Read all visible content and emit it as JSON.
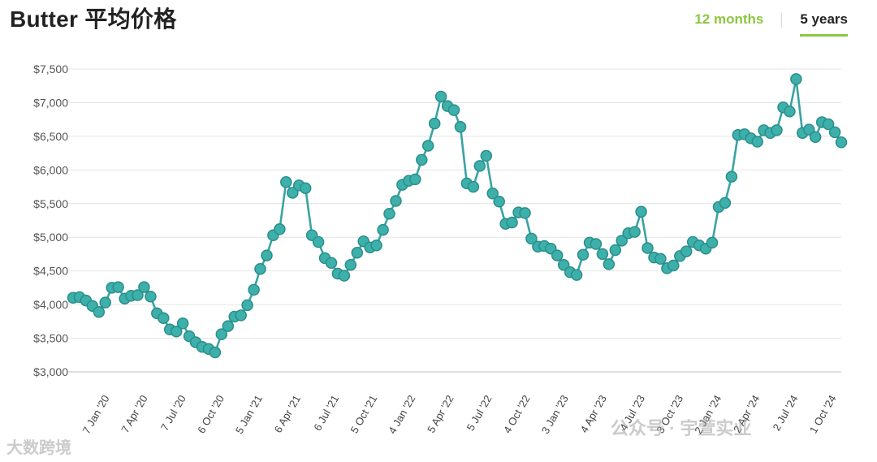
{
  "title": "Butter 平均价格",
  "tabs": [
    {
      "label": "12 months",
      "active": false
    },
    {
      "label": "5 years",
      "active": true
    }
  ],
  "colors": {
    "accent": "#8cc63f",
    "series": "#3aa3a3",
    "grid": "#e4e4e4"
  },
  "watermarks": {
    "left": "大数跨境",
    "right": "公众号 · 宇萱实业"
  },
  "chart_data": {
    "type": "line",
    "ylim": [
      3000,
      7500
    ],
    "yticks": [
      3000,
      3500,
      4000,
      4500,
      5000,
      5500,
      6000,
      6500,
      7000,
      7500
    ],
    "ytick_labels": [
      "$3,000",
      "$3,500",
      "$4,000",
      "$4,500",
      "$5,000",
      "$5,500",
      "$6,000",
      "$6,500",
      "$7,000",
      "$7,500"
    ],
    "xtick_labels": [
      "7 Jan '20",
      "7 Apr '20",
      "7 Jul '20",
      "6 Oct '20",
      "5 Jan '21",
      "6 Apr '21",
      "6 Jul '21",
      "5 Oct '21",
      "4 Jan '22",
      "5 Apr '22",
      "5 Jul '22",
      "4 Oct '22",
      "3 Jan '23",
      "4 Apr '23",
      "4 Jul '23",
      "3 Oct '23",
      "2 Jan '24",
      "2 Apr '24",
      "2 Jul '24",
      "1 Oct '24"
    ],
    "grid": true,
    "series": [
      {
        "values": [
          4100,
          4110,
          4060,
          3980,
          3890,
          4030,
          4250,
          4260,
          4090,
          4130,
          4140,
          4260,
          4120,
          3870,
          3800,
          3630,
          3600,
          3720,
          3530,
          3440,
          3370,
          3340,
          3290,
          3560,
          3680,
          3820,
          3840,
          3990,
          4220,
          4530,
          4730,
          5030,
          5120,
          5820,
          5660,
          5770,
          5730,
          5030,
          4930,
          4690,
          4620,
          4460,
          4430,
          4590,
          4770,
          4940,
          4850,
          4880,
          5110,
          5350,
          5540,
          5780,
          5840,
          5860,
          6150,
          6360,
          6690,
          7090,
          6950,
          6890,
          6640,
          5800,
          5750,
          6060,
          6210,
          5650,
          5530,
          5200,
          5220,
          5370,
          5360,
          4980,
          4860,
          4870,
          4830,
          4730,
          4590,
          4480,
          4440,
          4740,
          4920,
          4900,
          4750,
          4600,
          4810,
          4950,
          5060,
          5080,
          5380,
          4840,
          4700,
          4680,
          4540,
          4580,
          4720,
          4790,
          4930,
          4880,
          4830,
          4920,
          5450,
          5510,
          5900,
          6520,
          6530,
          6470,
          6420,
          6590,
          6550,
          6590,
          6930,
          6870,
          7350,
          6550,
          6600,
          6490,
          6710,
          6680,
          6560,
          6410
        ]
      }
    ]
  }
}
